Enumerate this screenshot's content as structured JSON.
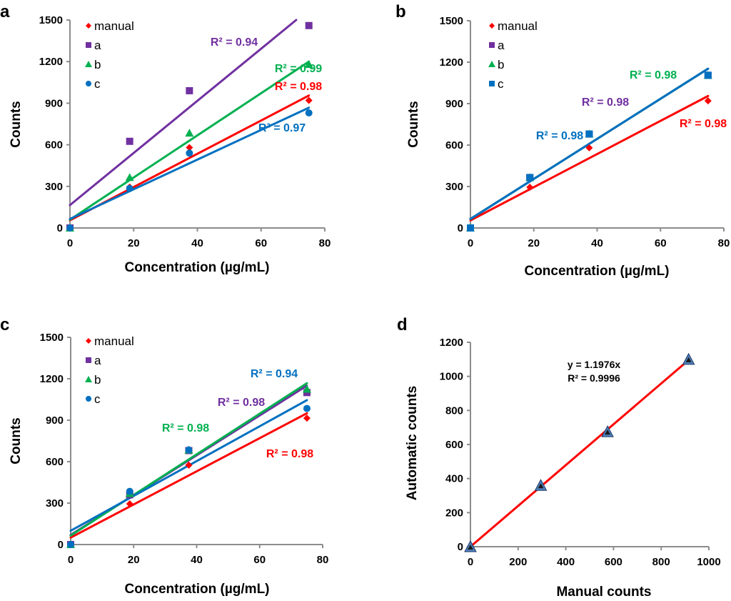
{
  "chart_data": [
    {
      "panel": "a",
      "type": "scatter",
      "xlabel": "Concentration (µg/mL)",
      "ylabel": "Counts",
      "xlim": [
        0,
        80
      ],
      "ylim": [
        0,
        1500
      ],
      "xticks": [
        0,
        20,
        40,
        60,
        80
      ],
      "yticks": [
        0,
        300,
        600,
        900,
        1200,
        1500
      ],
      "legend": "top-left",
      "x": [
        0,
        18.75,
        37.5,
        75
      ],
      "series": [
        {
          "name": "manual",
          "marker": "diamond",
          "color": "#FF0000",
          "values": [
            0,
            295,
            580,
            920
          ],
          "trend": [
            55,
            12.0
          ],
          "r2_label": "R² = 0.98"
        },
        {
          "name": "a",
          "marker": "square",
          "color": "#7030A0",
          "values": [
            0,
            625,
            990,
            1460
          ],
          "trend": [
            165,
            18.8
          ],
          "r2_label": "R² = 0.94"
        },
        {
          "name": "b",
          "marker": "triangle",
          "color": "#00B050",
          "values": [
            0,
            365,
            685,
            1180
          ],
          "trend": [
            60,
            15.2
          ],
          "r2_label": "R² = 0.99"
        },
        {
          "name": "c",
          "marker": "circle",
          "color": "#0070C0",
          "values": [
            0,
            285,
            540,
            830
          ],
          "trend": [
            65,
            10.7
          ],
          "r2_label": "R² = 0.97"
        }
      ]
    },
    {
      "panel": "b",
      "type": "scatter",
      "xlabel": "Concentration (µg/mL)",
      "ylabel": "Counts",
      "xlim": [
        0,
        80
      ],
      "ylim": [
        0,
        1500
      ],
      "xticks": [
        0,
        20,
        40,
        60,
        80
      ],
      "yticks": [
        0,
        300,
        600,
        900,
        1200,
        1500
      ],
      "legend": "top-left",
      "x": [
        0,
        18.75,
        37.5,
        75
      ],
      "series": [
        {
          "name": "manual",
          "marker": "diamond",
          "color": "#FF0000",
          "values": [
            0,
            295,
            580,
            920
          ],
          "trend": [
            55,
            12.0
          ],
          "r2_label": "R² = 0.98"
        },
        {
          "name": "a",
          "marker": "square",
          "color": "#7030A0",
          "values": [
            0,
            365,
            680,
            1105
          ],
          "trend": [
            65,
            14.5
          ],
          "r2_label": "R² = 0.98"
        },
        {
          "name": "b",
          "marker": "triangle",
          "color": "#00B050",
          "values": [
            0,
            365,
            680,
            1105
          ],
          "trend": [
            65,
            14.5
          ],
          "r2_label": "R² = 0.98"
        },
        {
          "name": "c",
          "marker": "square",
          "color": "#0070C0",
          "values": [
            0,
            365,
            680,
            1105
          ],
          "trend": [
            65,
            14.5
          ],
          "r2_label": "R² = 0.98"
        }
      ]
    },
    {
      "panel": "c",
      "type": "scatter",
      "xlabel": "Concentration (µg/mL)",
      "ylabel": "Counts",
      "xlim": [
        0,
        80
      ],
      "ylim": [
        0,
        1500
      ],
      "xticks": [
        0,
        20,
        40,
        60,
        80
      ],
      "yticks": [
        0,
        300,
        600,
        900,
        1200,
        1500
      ],
      "legend": "top-left",
      "x": [
        0,
        18.75,
        37.5,
        75
      ],
      "series": [
        {
          "name": "manual",
          "marker": "diamond",
          "color": "#FF0000",
          "values": [
            0,
            295,
            575,
            915
          ],
          "trend": [
            50,
            12.0
          ],
          "r2_label": "R² = 0.98"
        },
        {
          "name": "a",
          "marker": "square",
          "color": "#7030A0",
          "values": [
            0,
            360,
            680,
            1100
          ],
          "trend": [
            70,
            14.4
          ],
          "r2_label": "R² = 0.98"
        },
        {
          "name": "b",
          "marker": "triangle",
          "color": "#00B050",
          "values": [
            0,
            370,
            685,
            1125
          ],
          "trend": [
            65,
            14.7
          ],
          "r2_label": "R² = 0.98"
        },
        {
          "name": "c",
          "marker": "circle",
          "color": "#0070C0",
          "values": [
            0,
            385,
            685,
            985
          ],
          "trend": [
            100,
            12.6
          ],
          "r2_label": "R² = 0.94"
        }
      ]
    },
    {
      "panel": "d",
      "type": "scatter",
      "xlabel": "Manual counts",
      "ylabel": "Automatic counts",
      "xlim": [
        0,
        1000
      ],
      "ylim": [
        0,
        1200
      ],
      "xticks": [
        0,
        200,
        400,
        600,
        800,
        1000
      ],
      "yticks": [
        0,
        200,
        400,
        600,
        800,
        1000,
        1200
      ],
      "x": [
        0,
        295,
        575,
        915
      ],
      "series": [
        {
          "name": "automatic",
          "marker": "triangle",
          "color": "#4F81BD",
          "values": [
            0,
            360,
            675,
            1100
          ],
          "trend": [
            0,
            1.1976
          ],
          "trend_color": "#FF0000"
        }
      ],
      "equation_label": "y = 1.1976x",
      "r2_label": "R² = 0.9996"
    }
  ]
}
